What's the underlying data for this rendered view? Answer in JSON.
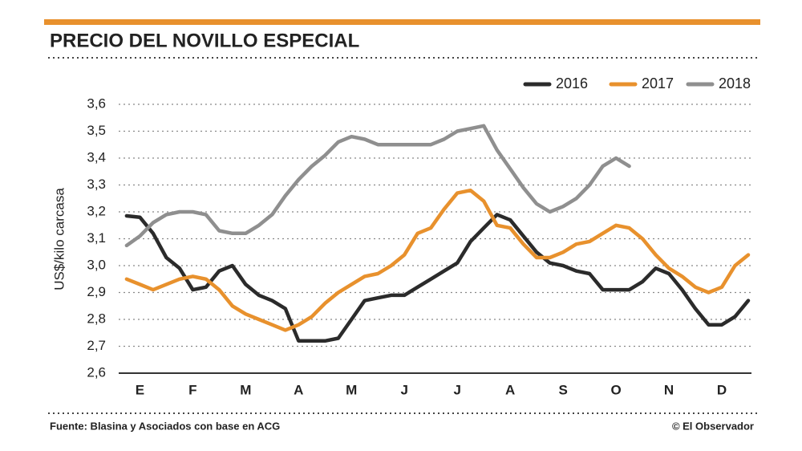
{
  "chart_data": {
    "type": "line",
    "title": "PRECIO DEL NOVILLO ESPECIAL",
    "ylabel": "US$/kilo carcasa",
    "source": "Fuente: Blasina y Asociados con base en ACG",
    "credit": "© El Observador",
    "x": [
      0.75,
      1,
      1.25,
      1.5,
      1.75,
      2,
      2.25,
      2.5,
      2.75,
      3,
      3.25,
      3.5,
      3.75,
      4,
      4.25,
      4.5,
      4.75,
      5,
      5.25,
      5.5,
      5.75,
      6,
      6.25,
      6.5,
      6.75,
      7,
      7.25,
      7.5,
      7.75,
      8,
      8.25,
      8.5,
      8.75,
      9,
      9.25,
      9.5,
      9.75,
      10,
      10.25,
      10.5,
      10.75,
      11,
      11.25,
      11.5,
      11.75,
      12,
      12.25,
      12.5
    ],
    "series": [
      {
        "name": "2016",
        "color": "#2b2b2b",
        "values": [
          3.185,
          3.18,
          3.12,
          3.03,
          2.99,
          2.91,
          2.92,
          2.98,
          3.0,
          2.93,
          2.89,
          2.87,
          2.84,
          2.72,
          2.72,
          2.72,
          2.73,
          2.8,
          2.87,
          2.88,
          2.89,
          2.89,
          2.92,
          2.95,
          2.98,
          3.01,
          3.09,
          3.14,
          3.19,
          3.17,
          3.11,
          3.05,
          3.01,
          3.0,
          2.98,
          2.97,
          2.91,
          2.91,
          2.91,
          2.94,
          2.99,
          2.97,
          2.91,
          2.84,
          2.78,
          2.78,
          2.81,
          2.87
        ]
      },
      {
        "name": "2017",
        "color": "#e8912d",
        "values": [
          2.95,
          2.93,
          2.91,
          2.93,
          2.95,
          2.96,
          2.95,
          2.91,
          2.85,
          2.82,
          2.8,
          2.78,
          2.76,
          2.78,
          2.81,
          2.86,
          2.9,
          2.93,
          2.96,
          2.97,
          3.0,
          3.04,
          3.12,
          3.14,
          3.21,
          3.27,
          3.28,
          3.24,
          3.15,
          3.14,
          3.08,
          3.03,
          3.03,
          3.05,
          3.08,
          3.09,
          3.12,
          3.15,
          3.14,
          3.1,
          3.04,
          2.99,
          2.96,
          2.92,
          2.9,
          2.92,
          3.0,
          3.04
        ]
      },
      {
        "name": "2018",
        "color": "#8f8f8f",
        "values": [
          3.075,
          3.11,
          3.16,
          3.19,
          3.2,
          3.2,
          3.19,
          3.13,
          3.12,
          3.12,
          3.15,
          3.19,
          3.26,
          3.32,
          3.37,
          3.41,
          3.46,
          3.48,
          3.47,
          3.45,
          3.45,
          3.45,
          3.45,
          3.45,
          3.47,
          3.5,
          3.51,
          3.52,
          3.43,
          3.36,
          3.29,
          3.23,
          3.2,
          3.22,
          3.25,
          3.3,
          3.37,
          3.4,
          3.37,
          null,
          null,
          null,
          null,
          null,
          null,
          null,
          null,
          null
        ]
      }
    ],
    "xlim": [
      0.6,
      12.5
    ],
    "xticks": [
      {
        "value": 1,
        "label": "E"
      },
      {
        "value": 2,
        "label": "F"
      },
      {
        "value": 3,
        "label": "M"
      },
      {
        "value": 4,
        "label": "A"
      },
      {
        "value": 5,
        "label": "M"
      },
      {
        "value": 6,
        "label": "J"
      },
      {
        "value": 7,
        "label": "J"
      },
      {
        "value": 8,
        "label": "A"
      },
      {
        "value": 9,
        "label": "S"
      },
      {
        "value": 10,
        "label": "O"
      },
      {
        "value": 11,
        "label": "N"
      },
      {
        "value": 12,
        "label": "D"
      }
    ],
    "ylim": [
      2.6,
      3.6
    ],
    "yticks": [
      {
        "value": 2.6,
        "label": "2,6"
      },
      {
        "value": 2.7,
        "label": "2,7"
      },
      {
        "value": 2.8,
        "label": "2,8"
      },
      {
        "value": 2.9,
        "label": "2,9"
      },
      {
        "value": 3.0,
        "label": "3,0"
      },
      {
        "value": 3.1,
        "label": "3,1"
      },
      {
        "value": 3.2,
        "label": "3,2"
      },
      {
        "value": 3.3,
        "label": "3,3"
      },
      {
        "value": 3.4,
        "label": "3,4"
      },
      {
        "value": 3.5,
        "label": "3,5"
      },
      {
        "value": 3.6,
        "label": "3,6"
      }
    ],
    "grid": true,
    "legend": "top-right"
  }
}
